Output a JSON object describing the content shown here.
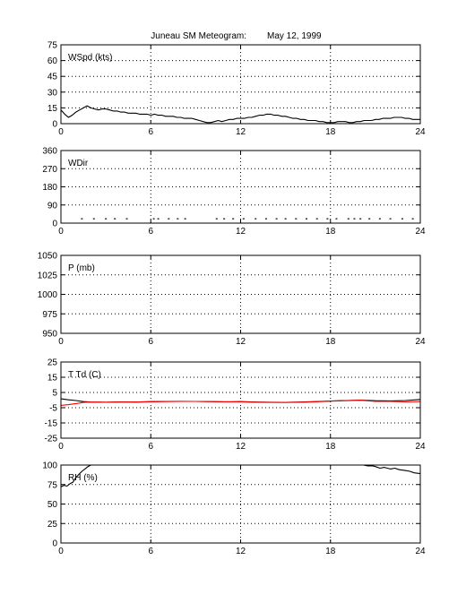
{
  "figure": {
    "title_station": "Juneau SM Meteogram:",
    "title_date": "May 12, 1999"
  },
  "chart_data": [
    {
      "type": "line",
      "label": "WSpd (kts)",
      "xlim": [
        0,
        24
      ],
      "xticks": [
        0,
        6,
        12,
        18,
        24
      ],
      "ylim": [
        0,
        75
      ],
      "yticks": [
        0,
        15,
        30,
        45,
        60,
        75
      ],
      "grid": true,
      "series": [
        {
          "color": "#000000",
          "x": [
            0,
            0.25,
            0.5,
            0.75,
            1,
            1.25,
            1.5,
            1.75,
            2,
            2.25,
            2.5,
            2.75,
            3,
            3.25,
            3.5,
            3.75,
            4,
            4.25,
            4.5,
            4.75,
            5,
            5.25,
            5.5,
            5.75,
            6,
            6.25,
            6.5,
            6.75,
            7,
            7.25,
            7.5,
            7.75,
            8,
            8.25,
            8.5,
            8.75,
            9,
            9.25,
            9.5,
            9.75,
            10,
            10.25,
            10.5,
            10.75,
            11,
            11.25,
            11.5,
            11.75,
            12,
            12.25,
            12.5,
            12.75,
            13,
            13.25,
            13.5,
            13.75,
            14,
            14.25,
            14.5,
            14.75,
            15,
            15.25,
            15.5,
            15.75,
            16,
            16.25,
            16.5,
            16.75,
            17,
            17.25,
            17.5,
            17.75,
            18,
            18.25,
            18.5,
            18.75,
            19,
            19.25,
            19.5,
            19.75,
            20,
            20.25,
            20.5,
            20.75,
            21,
            21.25,
            21.5,
            21.75,
            22,
            22.25,
            22.5,
            22.75,
            23,
            23.25,
            23.5,
            23.75,
            24
          ],
          "y": [
            13,
            9,
            6,
            8,
            11,
            13,
            15,
            17,
            15,
            14,
            13,
            14,
            14,
            13,
            12,
            12,
            11,
            11,
            10,
            10,
            10,
            9,
            9,
            9,
            8,
            9,
            8,
            8,
            7,
            7,
            7,
            6,
            6,
            5,
            5,
            5,
            4,
            3,
            2,
            1,
            1,
            2,
            3,
            2,
            3,
            4,
            4,
            5,
            5,
            5,
            6,
            6,
            7,
            8,
            8,
            9,
            9,
            8,
            8,
            7,
            7,
            6,
            5,
            5,
            4,
            4,
            3,
            3,
            3,
            2,
            2,
            1,
            1,
            1,
            2,
            2,
            2,
            1,
            1,
            2,
            2,
            3,
            3,
            3,
            4,
            4,
            5,
            5,
            5,
            6,
            6,
            6,
            5,
            5,
            4,
            4,
            4
          ]
        }
      ]
    },
    {
      "type": "scatter",
      "label": "WDir",
      "xlim": [
        0,
        24
      ],
      "xticks": [
        0,
        6,
        12,
        18,
        24
      ],
      "ylim": [
        0,
        360
      ],
      "yticks": [
        0,
        90,
        180,
        270,
        360
      ],
      "grid": true,
      "series": [
        {
          "color": "#000000",
          "x": [
            1.4,
            2.2,
            3.0,
            3.6,
            4.4,
            6.2,
            6.5,
            7.2,
            7.8,
            8.3,
            10.4,
            10.9,
            11.5,
            12.2,
            13.0,
            13.7,
            14.4,
            15.0,
            15.7,
            16.4,
            17.1,
            17.8,
            18.4,
            19.2,
            19.6,
            20.0,
            20.6,
            21.3,
            22.0,
            22.8,
            23.5
          ],
          "y": [
            22,
            22,
            22,
            22,
            22,
            22,
            22,
            22,
            22,
            22,
            22,
            22,
            22,
            22,
            22,
            22,
            22,
            22,
            22,
            22,
            22,
            22,
            22,
            22,
            22,
            22,
            22,
            22,
            22,
            22,
            22
          ]
        }
      ]
    },
    {
      "type": "line",
      "label": "P (mb)",
      "xlim": [
        0,
        24
      ],
      "xticks": [
        0,
        6,
        12,
        18,
        24
      ],
      "ylim": [
        950,
        1050
      ],
      "yticks": [
        950,
        975,
        1000,
        1025,
        1050
      ],
      "grid": true,
      "series": []
    },
    {
      "type": "line",
      "label": "T Td (C)",
      "xlim": [
        0,
        24
      ],
      "xticks": [
        0,
        6,
        12,
        18,
        24
      ],
      "ylim": [
        -25,
        25
      ],
      "yticks": [
        -25,
        -15,
        -5,
        5,
        15,
        25
      ],
      "grid": true,
      "series": [
        {
          "color": "#000000",
          "x": [
            0,
            0.5,
            1,
            1.5,
            2,
            3,
            4,
            5,
            6,
            7,
            8,
            9,
            10,
            11,
            12,
            13,
            14,
            15,
            16,
            17,
            18,
            19,
            20,
            21,
            22,
            23,
            24
          ],
          "y": [
            0.8,
            0.2,
            -0.3,
            -1.0,
            -1.3,
            -1.4,
            -1.2,
            -1.3,
            -1.0,
            -0.9,
            -0.8,
            -0.9,
            -1.0,
            -1.1,
            -1.0,
            -1.3,
            -1.4,
            -1.5,
            -1.3,
            -1.0,
            -0.6,
            -0.3,
            0.0,
            -0.4,
            -0.5,
            -0.3,
            0.4
          ]
        },
        {
          "color": "#ff0000",
          "x": [
            0,
            0.5,
            1,
            1.5,
            2,
            3,
            4,
            5,
            6,
            7,
            8,
            9,
            10,
            11,
            12,
            13,
            14,
            15,
            16,
            17,
            18,
            19,
            20,
            21,
            22,
            23,
            24
          ],
          "y": [
            -3.5,
            -3.0,
            -2.3,
            -1.5,
            -1.3,
            -1.4,
            -1.3,
            -1.3,
            -1.1,
            -1.0,
            -0.9,
            -0.9,
            -1.0,
            -1.1,
            -1.1,
            -1.4,
            -1.5,
            -1.5,
            -1.4,
            -1.1,
            -0.7,
            -0.4,
            -0.1,
            -0.8,
            -0.9,
            -1.2,
            -1.0
          ]
        }
      ]
    },
    {
      "type": "line",
      "label": "RH (%)",
      "xlim": [
        0,
        24
      ],
      "xticks": [
        0,
        6,
        12,
        18,
        24
      ],
      "ylim": [
        0,
        100
      ],
      "yticks": [
        0,
        25,
        50,
        75,
        100
      ],
      "grid": true,
      "series": [
        {
          "color": "#000000",
          "x": [
            0,
            0.2,
            0.4,
            0.6,
            0.8,
            1.0,
            1.2,
            1.4,
            1.6,
            1.8,
            2.0
          ],
          "y": [
            72,
            74,
            73,
            76,
            78,
            84,
            88,
            92,
            95,
            98,
            100
          ]
        },
        {
          "color": "#000000",
          "x": [
            20.2,
            20.5,
            20.8,
            21.0,
            21.3,
            21.6,
            22.0,
            22.3,
            22.6,
            23.0,
            23.3,
            23.6,
            24.0
          ],
          "y": [
            100,
            99,
            99,
            98,
            96,
            97,
            95,
            96,
            94,
            93,
            92,
            90,
            89
          ]
        }
      ]
    }
  ]
}
